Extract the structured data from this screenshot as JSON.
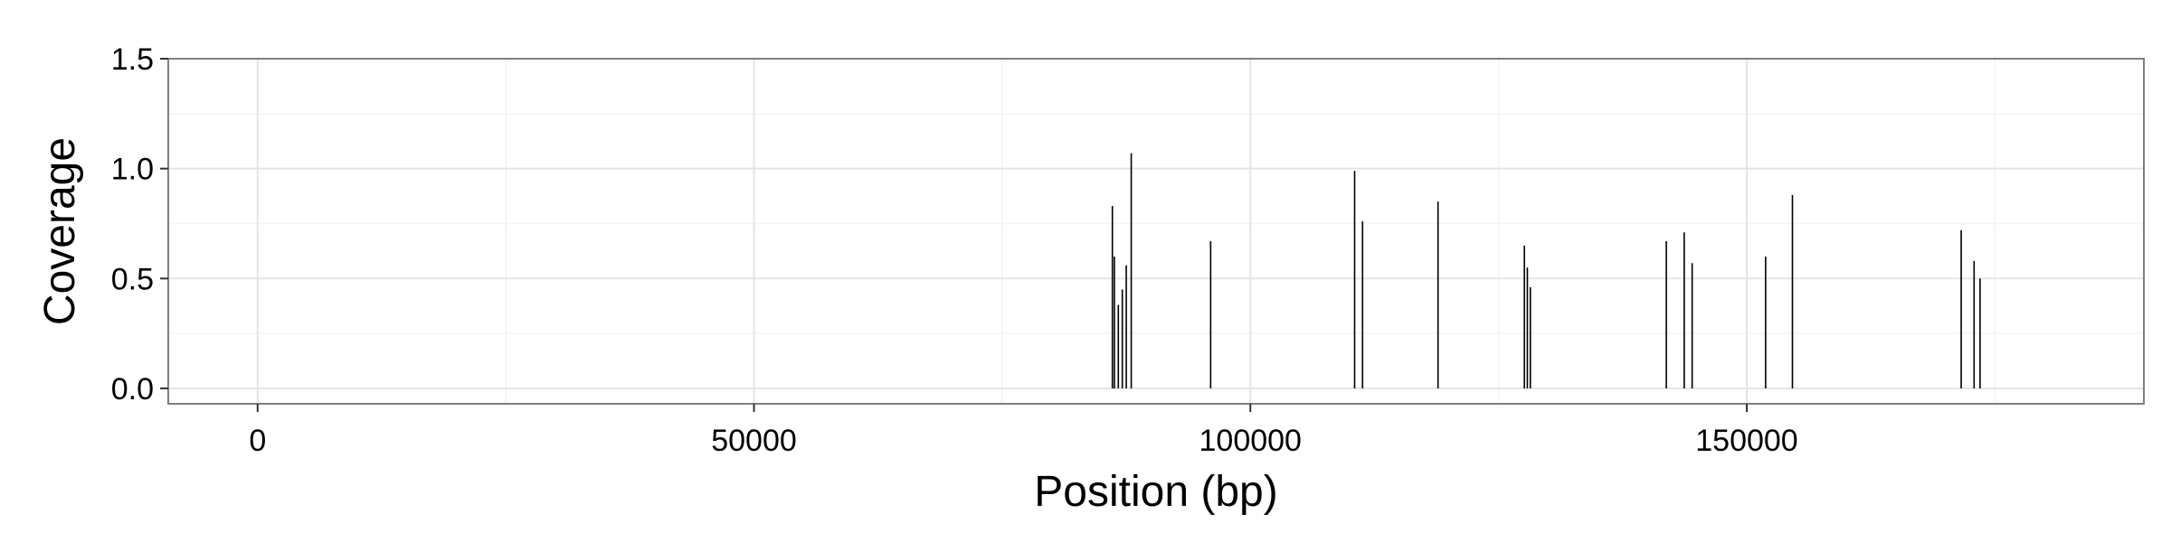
{
  "chart_data": {
    "type": "bar",
    "title": "",
    "xlabel": "Position (bp)",
    "ylabel": "Coverage",
    "xlim": [
      -9000,
      190000
    ],
    "ylim": [
      -0.07,
      1.5
    ],
    "x_ticks": [
      0,
      50000,
      100000,
      150000
    ],
    "x_tick_labels": [
      "0",
      "50000",
      "100000",
      "150000"
    ],
    "y_ticks": [
      0.0,
      0.5,
      1.0,
      1.5
    ],
    "y_tick_labels": [
      "0.0",
      "0.5",
      "1.0",
      "1.5"
    ],
    "grid": true,
    "legend": "none",
    "colors": {
      "bar": "#000000",
      "grid_major": "#e5e5e5",
      "grid_minor": "#f3f3f3",
      "panel_border": "#7f7f7f"
    },
    "points": [
      {
        "x": 86100,
        "y": 0.83
      },
      {
        "x": 86300,
        "y": 0.6
      },
      {
        "x": 86700,
        "y": 0.38
      },
      {
        "x": 87100,
        "y": 0.45
      },
      {
        "x": 87500,
        "y": 0.56
      },
      {
        "x": 88000,
        "y": 1.07
      },
      {
        "x": 96000,
        "y": 0.67
      },
      {
        "x": 110500,
        "y": 0.99
      },
      {
        "x": 111300,
        "y": 0.76
      },
      {
        "x": 118900,
        "y": 0.85
      },
      {
        "x": 127600,
        "y": 0.65
      },
      {
        "x": 127900,
        "y": 0.55
      },
      {
        "x": 128200,
        "y": 0.46
      },
      {
        "x": 141900,
        "y": 0.67
      },
      {
        "x": 143700,
        "y": 0.71
      },
      {
        "x": 144500,
        "y": 0.57
      },
      {
        "x": 151900,
        "y": 0.6
      },
      {
        "x": 154600,
        "y": 0.88
      },
      {
        "x": 171600,
        "y": 0.72
      },
      {
        "x": 172900,
        "y": 0.58
      },
      {
        "x": 173500,
        "y": 0.5
      }
    ]
  }
}
